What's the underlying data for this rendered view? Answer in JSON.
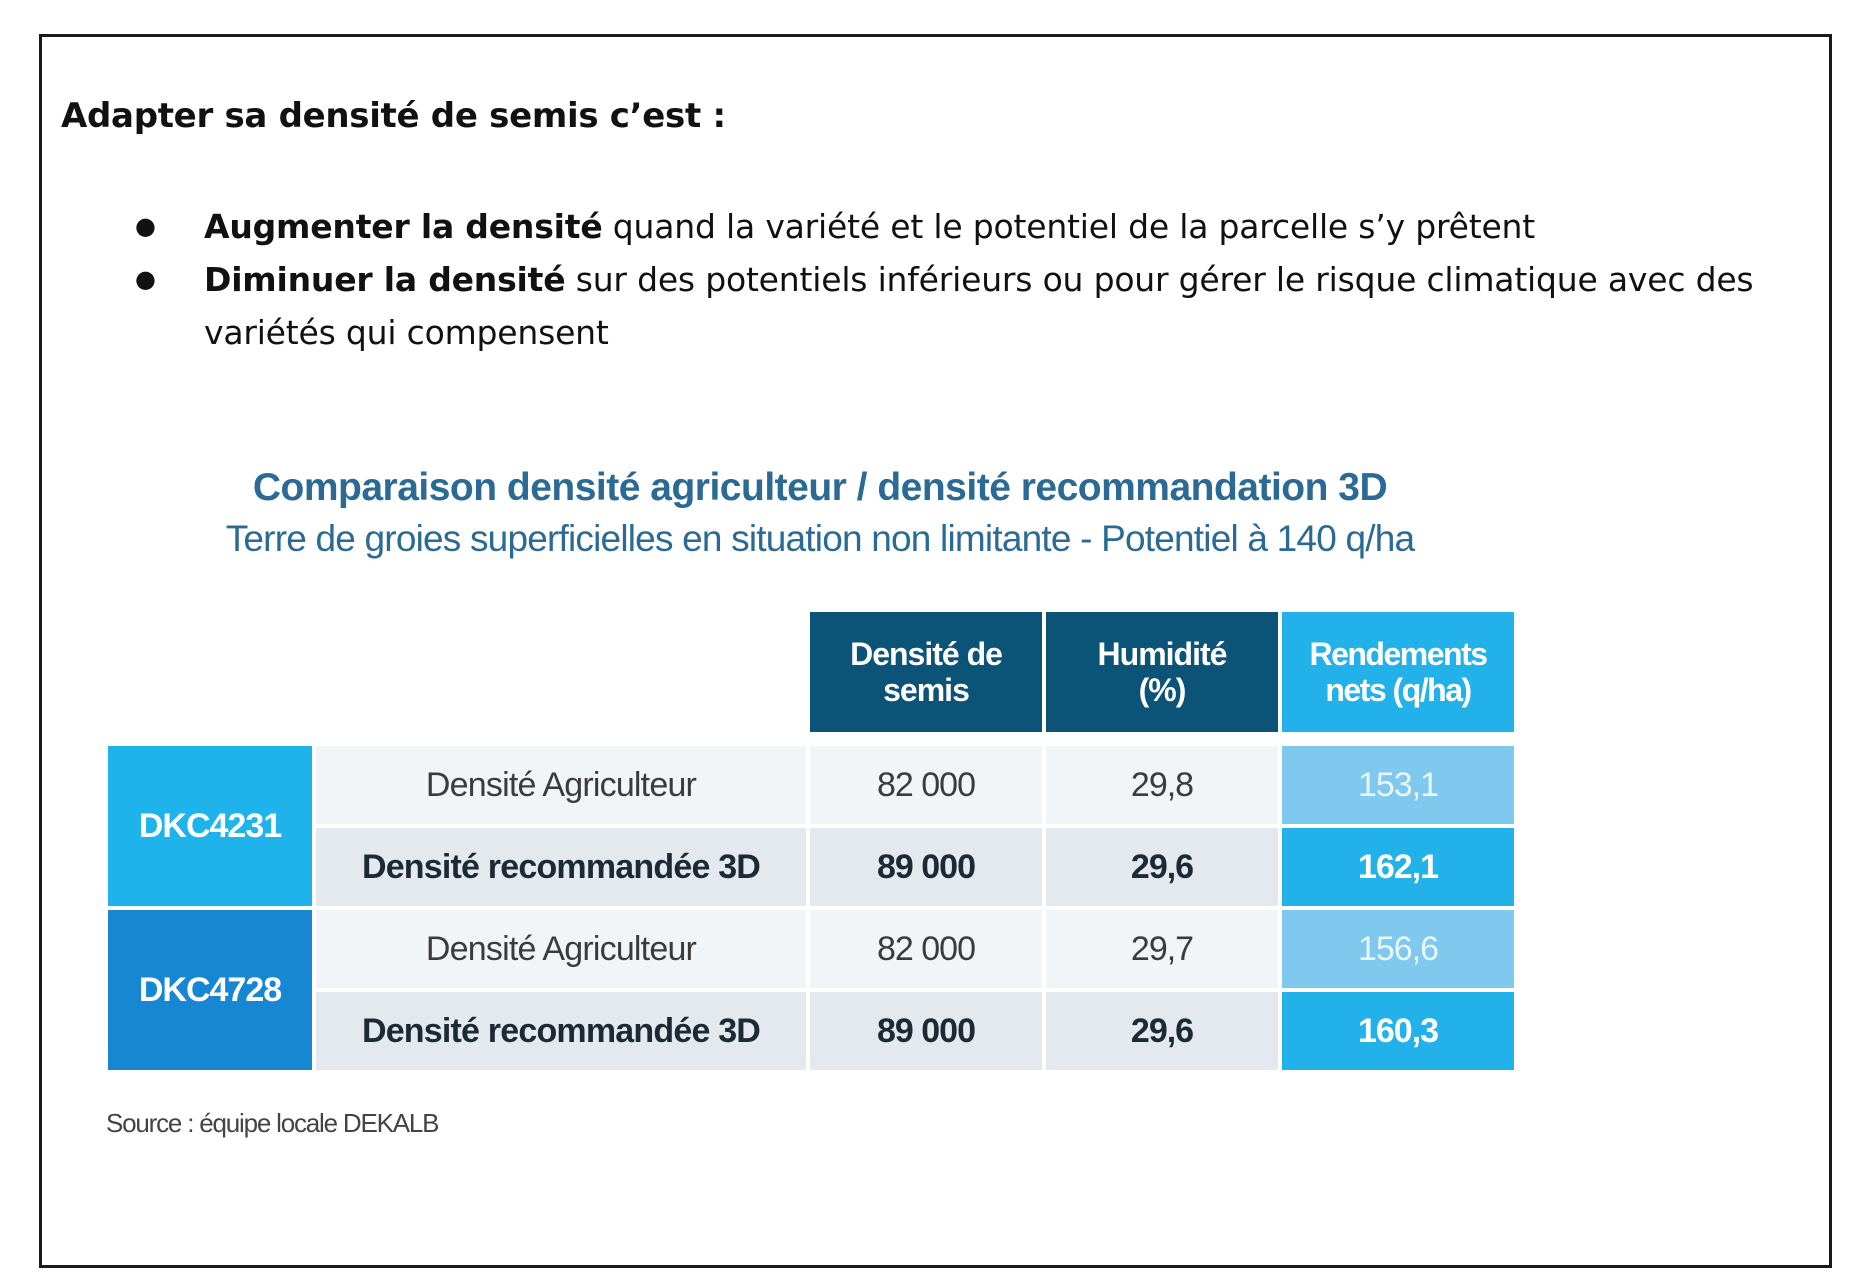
{
  "heading": "Adapter sa densité de semis c’est :",
  "bullets": [
    {
      "bold": "Augmenter la densité",
      "text": " quand la variété et le potentiel de la parcelle s’y prêtent"
    },
    {
      "bold": "Diminuer la densité",
      "text": " sur des potentiels inférieurs ou pour gérer le risque climatique avec des variétés qui compensent"
    }
  ],
  "bullet_glyph": "●",
  "chart_data": {
    "type": "table",
    "title": "Comparaison densité agriculteur / densité recommandation 3D",
    "subtitle": "Terre de groies superficielles en situation non limitante - Potentiel à 140 q/ha",
    "columns": [
      {
        "line1": "Densité de",
        "line2": "semis"
      },
      {
        "line1": "Humidité",
        "line2": "(%)"
      },
      {
        "line1": "Rendements",
        "line2": "nets (q/ha)"
      }
    ],
    "groups": [
      {
        "variety": "DKC4231",
        "rows": [
          {
            "label": "Densité Agriculteur",
            "densite": "82 000",
            "humidite": "29,8",
            "rendement": "153,1"
          },
          {
            "label": "Densité recommandée 3D",
            "densite": "89 000",
            "humidite": "29,6",
            "rendement": "162,1"
          }
        ]
      },
      {
        "variety": "DKC4728",
        "rows": [
          {
            "label": "Densité Agriculteur",
            "densite": "82 000",
            "humidite": "29,7",
            "rendement": "156,6"
          },
          {
            "label": "Densité recommandée 3D",
            "densite": "89 000",
            "humidite": "29,6",
            "rendement": "160,3"
          }
        ]
      }
    ],
    "source": "Source : équipe locale DEKALB"
  },
  "colors": {
    "title_blue": "#2a6a95",
    "header_dark": "#0b5377",
    "header_bright": "#22b1e8",
    "variety_1": "#1eb3ea",
    "variety_2": "#1787d3",
    "yield_light": "#7fc8ee"
  }
}
